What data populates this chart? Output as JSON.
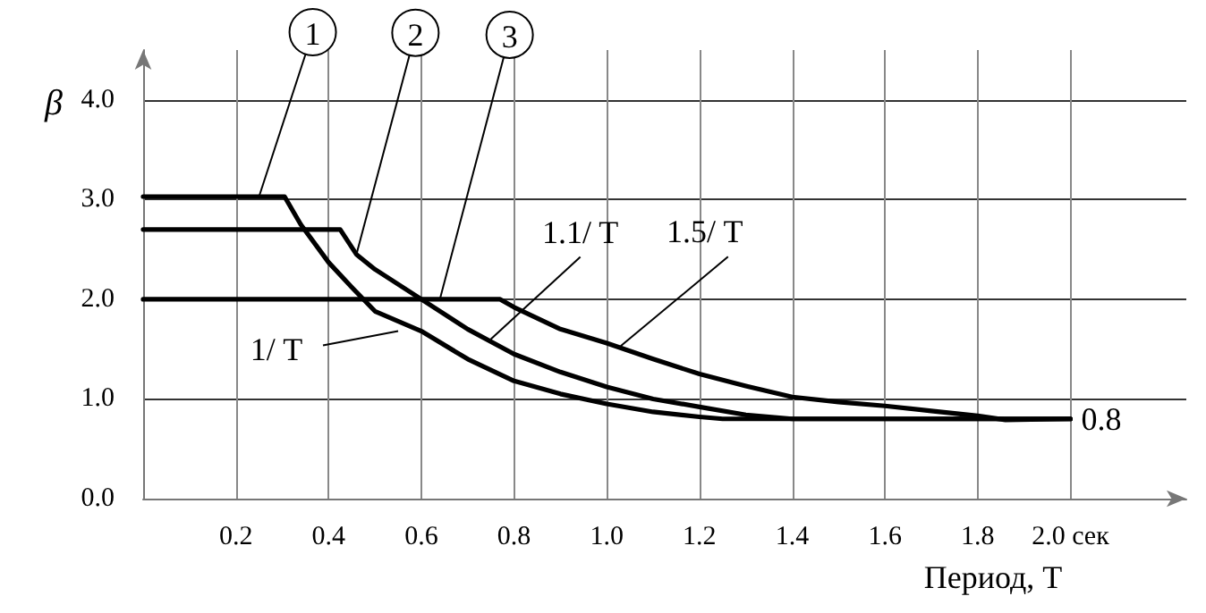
{
  "chart_data": {
    "type": "line",
    "xlabel": "Период, T",
    "ylabel": "β",
    "series": [
      {
        "color": "#000000",
        "x": [
          0,
          0.305,
          0.34,
          0.4,
          0.45,
          0.5,
          0.6,
          0.7,
          0.8,
          0.9,
          1.0,
          1.1,
          1.2,
          1.25,
          2.0
        ],
        "values": [
          3.03,
          3.03,
          2.75,
          2.37,
          2.12,
          1.88,
          1.68,
          1.4,
          1.18,
          1.05,
          0.95,
          0.87,
          0.82,
          0.8,
          0.8
        ]
      },
      {
        "color": "#000000",
        "x": [
          0,
          0.425,
          0.46,
          0.5,
          0.6,
          0.7,
          0.8,
          0.9,
          1.0,
          1.1,
          1.2,
          1.3,
          1.4,
          2.0
        ],
        "values": [
          2.7,
          2.7,
          2.45,
          2.3,
          2.0,
          1.7,
          1.45,
          1.27,
          1.12,
          1.0,
          0.92,
          0.84,
          0.8,
          0.8
        ]
      },
      {
        "color": "#000000",
        "x": [
          0,
          0.77,
          0.8,
          0.9,
          1.0,
          1.1,
          1.2,
          1.3,
          1.4,
          1.5,
          1.6,
          1.7,
          1.8,
          1.86,
          2.0
        ],
        "values": [
          2.0,
          2.0,
          1.92,
          1.7,
          1.56,
          1.4,
          1.25,
          1.13,
          1.02,
          0.97,
          0.93,
          0.88,
          0.83,
          0.79,
          0.8
        ]
      }
    ],
    "xlim": [
      0,
      2.25
    ],
    "xticks": [
      0.2,
      0.4,
      0.6,
      0.8,
      {
        "value": 1,
        "label": "1.0"
      },
      1.2,
      1.4,
      1.6,
      1.8,
      {
        "value": 2,
        "label": "2.0 сек"
      }
    ],
    "ylim": [
      0,
      4.5
    ],
    "yticks": [
      {
        "value": 0,
        "label": "0.0"
      },
      {
        "value": 1,
        "label": "1.0"
      },
      {
        "value": 2,
        "label": "2.0"
      },
      {
        "value": 3,
        "label": "3.0"
      },
      {
        "value": 4,
        "label": "4.0"
      }
    ],
    "grid": true,
    "marker": "none",
    "line_style": "solid",
    "annotations": [
      {
        "text": "1",
        "x": 0.25,
        "y": 3.03
      },
      {
        "text": "2",
        "x": 0.46,
        "y": 2.45
      },
      {
        "text": "3",
        "x": 0.64,
        "y": 2.0
      },
      {
        "text": "1/ T",
        "x": 0.55,
        "y": 1.68
      },
      {
        "text": "1.1/ T",
        "x": 0.75,
        "y": 1.6
      },
      {
        "text": "1.5/ T",
        "x": 1.03,
        "y": 1.53
      },
      {
        "text": "0.8",
        "x": 2.0,
        "y": 0.8
      }
    ]
  }
}
